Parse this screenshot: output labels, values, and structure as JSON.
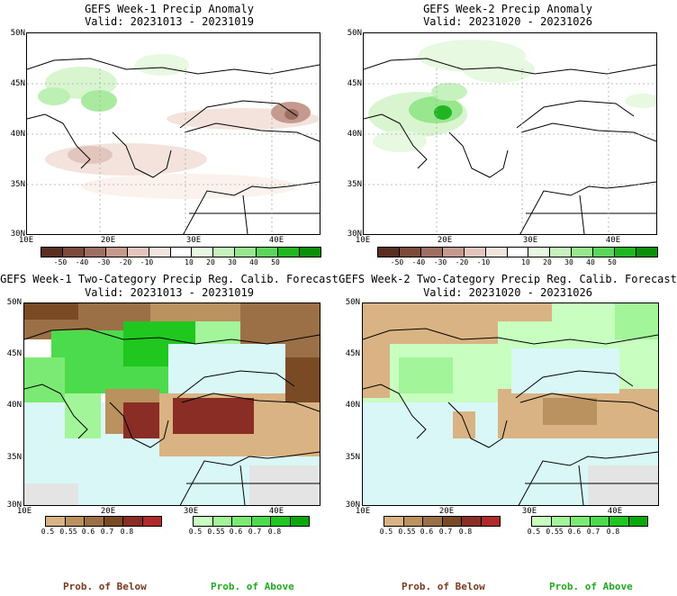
{
  "panels": [
    {
      "title_line1": "GEFS Week-1 Precip Anomaly",
      "title_line2": "Valid: 20231013 - 20231019"
    },
    {
      "title_line1": "GEFS Week-2 Precip Anomaly",
      "title_line2": "Valid: 20231020 - 20231026"
    },
    {
      "title_line1": "GEFS Week-1 Two-Category Precip Reg. Calib. Forecast",
      "title_line2": "Valid: 20231013 - 20231019"
    },
    {
      "title_line1": "GEFS Week-2 Two-Category Precip Reg. Calib. Forecast",
      "title_line2": "Valid: 20231020 - 20231026"
    }
  ],
  "lat_labels": [
    "50N",
    "45N",
    "40N",
    "35N",
    "30N"
  ],
  "lon_labels": [
    "10E",
    "20E",
    "30E",
    "40E"
  ],
  "anomaly_colorbar": {
    "ticks": [
      "-50",
      "-40",
      "-30",
      "-20",
      "-10",
      "10",
      "20",
      "30",
      "40",
      "50"
    ],
    "colors": [
      "#5a2e22",
      "#7b4a3c",
      "#9d6f62",
      "#c59a8e",
      "#e2c6bd",
      "#f3e3dc",
      "#ffffff",
      "#e7f9e0",
      "#c6f2be",
      "#98e68e",
      "#5dd45b",
      "#21b621",
      "#0b8f0b"
    ]
  },
  "probability_colorbars": {
    "below": {
      "ticks": [
        "0.5",
        "0.55",
        "0.6",
        "0.7",
        "0.8"
      ],
      "colors": [
        "#d9b383",
        "#b9925f",
        "#9b7047",
        "#7a4a25",
        "#8a2d24",
        "#b02a2a"
      ]
    },
    "above": {
      "ticks": [
        "0.5",
        "0.55",
        "0.6",
        "0.7",
        "0.8"
      ],
      "colors": [
        "#c8ffc0",
        "#a3f59a",
        "#7bea74",
        "#4cdb4c",
        "#1fc71f",
        "#0aa80a"
      ]
    }
  },
  "legend": {
    "below_label": "Prob. of Below",
    "above_label": "Prob. of Above"
  },
  "colors": {
    "below_label": "#7a3a1e",
    "above_label": "#22aa22",
    "sea": "#d9f7f7",
    "land_gray": "#e4e4e4"
  }
}
